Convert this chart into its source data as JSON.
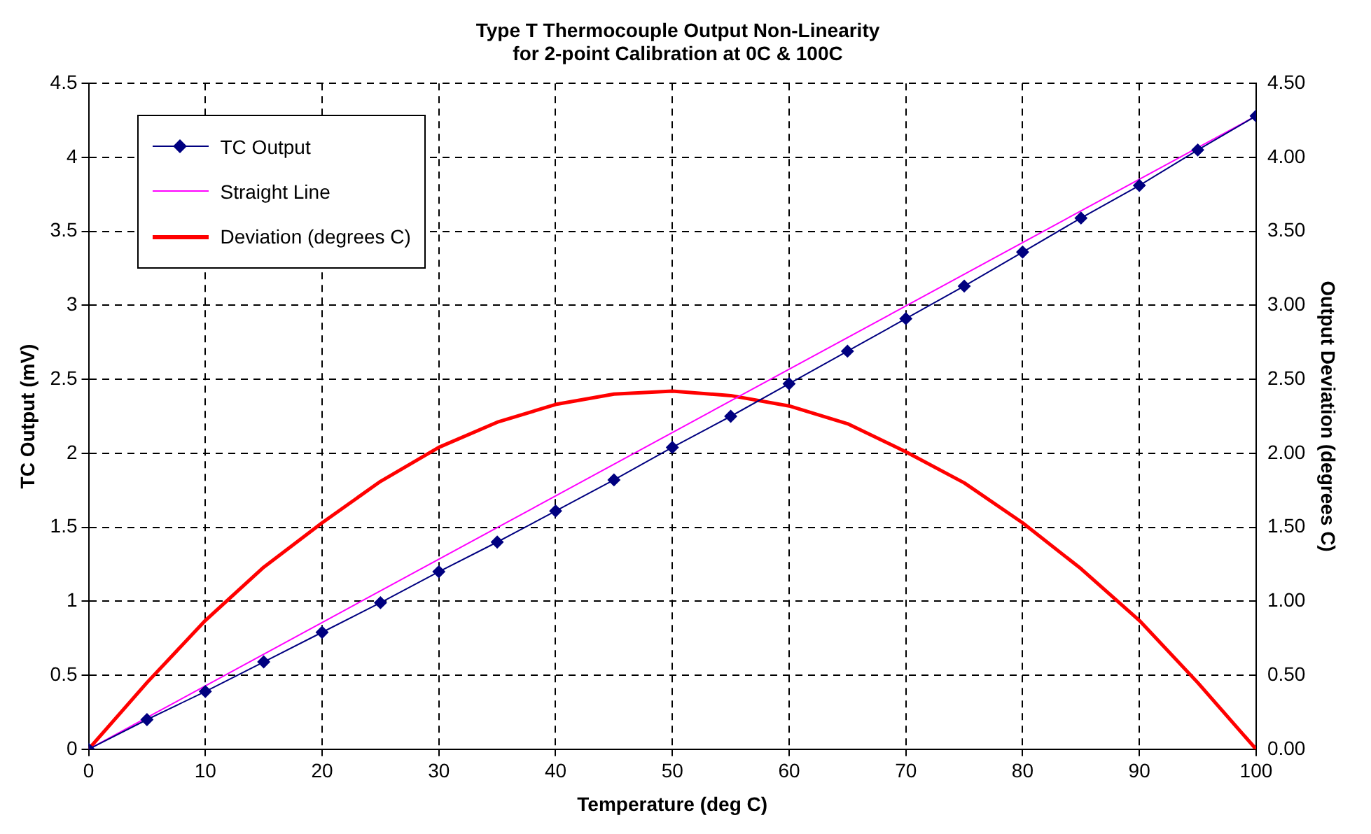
{
  "chart_data": {
    "type": "line",
    "title": "Type T Thermocouple Output Non-Linearity\nfor 2-point Calibration at 0C & 100C",
    "xlabel": "Temperature (deg C)",
    "ylabel": "TC Output (mV)",
    "y2label": "Output Deviation (degrees C)",
    "x": [
      0,
      5,
      10,
      15,
      20,
      25,
      30,
      35,
      40,
      45,
      50,
      55,
      60,
      65,
      70,
      75,
      80,
      85,
      90,
      95,
      100
    ],
    "series": [
      {
        "name": "TC Output",
        "color": "#000080",
        "marker": "diamond",
        "values": [
          0,
          0.2,
          0.39,
          0.59,
          0.79,
          0.99,
          1.2,
          1.4,
          1.61,
          1.82,
          2.04,
          2.25,
          2.47,
          2.69,
          2.91,
          3.13,
          3.36,
          3.59,
          3.81,
          4.05,
          4.28
        ]
      },
      {
        "name": "Straight Line",
        "color": "#ff00ff",
        "marker": "none",
        "x": [
          0,
          100
        ],
        "values": [
          0,
          4.28
        ]
      },
      {
        "name": "Deviation (degrees C)",
        "color": "#ff0000",
        "marker": "none",
        "axis": "y2",
        "values": [
          0,
          0.45,
          0.87,
          1.23,
          1.53,
          1.81,
          2.04,
          2.21,
          2.33,
          2.4,
          2.42,
          2.39,
          2.32,
          2.2,
          2.01,
          1.8,
          1.53,
          1.22,
          0.87,
          0.45,
          0
        ]
      }
    ],
    "xlim": [
      0,
      100
    ],
    "xticks": [
      0,
      10,
      20,
      30,
      40,
      50,
      60,
      70,
      80,
      90,
      100
    ],
    "ylim": [
      0,
      4.5
    ],
    "yticks": [
      0,
      0.5,
      1,
      1.5,
      2,
      2.5,
      3,
      3.5,
      4,
      4.5
    ],
    "y2lim": [
      0,
      4.5
    ],
    "y2ticks": [
      {
        "value": 0,
        "label": "0.00"
      },
      {
        "value": 0.5,
        "label": "0.50"
      },
      {
        "value": 1,
        "label": "1.00"
      },
      {
        "value": 1.5,
        "label": "1.50"
      },
      {
        "value": 2,
        "label": "2.00"
      },
      {
        "value": 2.5,
        "label": "2.50"
      },
      {
        "value": 3,
        "label": "3.00"
      },
      {
        "value": 3.5,
        "label": "3.50"
      },
      {
        "value": 4,
        "label": "4.00"
      },
      {
        "value": 4.5,
        "label": "4.50"
      }
    ],
    "grid": true,
    "legend": "top left",
    "line_style": "solid"
  }
}
